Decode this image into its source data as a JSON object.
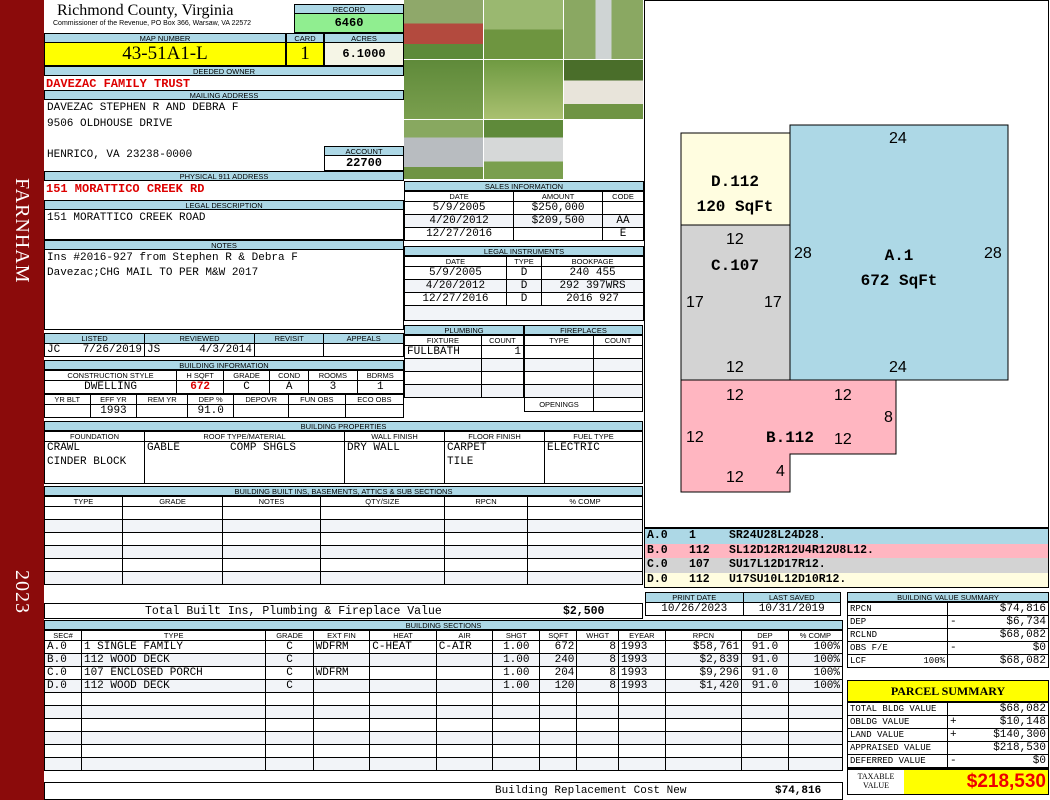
{
  "side": {
    "town": "FARNHAM",
    "year": "2023"
  },
  "header": {
    "county": "Richmond County, Virginia",
    "subtitle": "Commissioner of the Revenue, PO Box 366, Warsaw, VA 22572",
    "record_label": "RECORD",
    "record": "6460"
  },
  "map": {
    "map_label": "MAP NUMBER",
    "map_number": "43-51A1-L",
    "card_label": "CARD",
    "card": "1",
    "acres_label": "ACRES",
    "acres": "6.1000"
  },
  "owner": {
    "label": "DEEDED OWNER",
    "value": "DAVEZAC FAMILY TRUST"
  },
  "mailing": {
    "label": "MAILING ADDRESS",
    "line1": "DAVEZAC STEPHEN R AND DEBRA F",
    "line2": "9506 OLDHOUSE DRIVE",
    "line3": "HENRICO, VA 23238-0000",
    "account_label": "ACCOUNT",
    "account": "22700"
  },
  "physical": {
    "label": "PHYSICAL 911 ADDRESS",
    "value": "151 MORATTICO CREEK RD"
  },
  "legal": {
    "label": "LEGAL DESCRIPTION",
    "value": "151 MORATTICO CREEK ROAD"
  },
  "notes": {
    "label": "NOTES",
    "line1": "Ins #2016-927 from Stephen R & Debra F",
    "line2": "Davezac;CHG MAIL TO PER M&W 2017"
  },
  "sales": {
    "label": "SALES INFORMATION",
    "cols": [
      "DATE",
      "AMOUNT",
      "CODE"
    ],
    "rows": [
      [
        "5/9/2005",
        "$250,000",
        ""
      ],
      [
        "4/20/2012",
        "$209,500",
        "AA"
      ],
      [
        "12/27/2016",
        "",
        "E"
      ]
    ]
  },
  "instruments": {
    "label": "LEGAL INSTRUMENTS",
    "cols": [
      "DATE",
      "TYPE",
      "BOOKPAGE"
    ],
    "rows": [
      [
        "5/9/2005",
        "D",
        "240 455"
      ],
      [
        "4/20/2012",
        "D",
        "292 397WRS"
      ],
      [
        "12/27/2016",
        "D",
        "2016 927"
      ]
    ]
  },
  "review": {
    "cols": [
      "LISTED",
      "REVIEWED",
      "REVISIT",
      "APPEALS"
    ],
    "listed_by": "JC",
    "listed": "7/26/2019",
    "reviewed_by": "JS",
    "reviewed": "4/3/2014"
  },
  "building_info": {
    "label": "BUILDING INFORMATION",
    "cols1": [
      "CONSTRUCTION STYLE",
      "H SQFT",
      "GRADE",
      "COND",
      "ROOMS",
      "BDRMS"
    ],
    "vals1": [
      "DWELLING",
      "672",
      "C",
      "A",
      "3",
      "1"
    ],
    "cols2": [
      "YR BLT",
      "EFF YR",
      "REM YR",
      "DEP %",
      "DEPOVR",
      "FUN OBS",
      "ECO OBS"
    ],
    "vals2": [
      "",
      "1993",
      "",
      "91.0",
      "",
      "",
      ""
    ]
  },
  "plumbing": {
    "label": "PLUMBING",
    "cols": [
      "FIXTURE",
      "COUNT"
    ],
    "fixture": "FULLBATH",
    "count": "1"
  },
  "fireplaces": {
    "label": "FIREPLACES",
    "cols": [
      "TYPE",
      "COUNT"
    ],
    "openings": "OPENINGS"
  },
  "properties": {
    "label": "BUILDING PROPERTIES",
    "cols": [
      "FOUNDATION",
      "ROOF TYPE/MATERIAL",
      "WALL FINISH",
      "FLOOR FINISH",
      "FUEL TYPE"
    ],
    "foundation1": "CRAWL",
    "foundation2": "CINDER BLOCK",
    "roof_type": "GABLE",
    "roof_material": "COMP SHGLS",
    "wall": "DRY WALL",
    "floor1": "CARPET",
    "floor2": "TILE",
    "fuel": "ELECTRIC"
  },
  "builtins": {
    "label": "BUILDING BUILT INS, BASEMENTS, ATTICS & SUB SECTIONS",
    "cols": [
      "TYPE",
      "GRADE",
      "NOTES",
      "QTY/SIZE",
      "RPCN",
      "% COMP"
    ],
    "total_label": "Total Built Ins, Plumbing & Fireplace Value",
    "total": "$2,500"
  },
  "dates": {
    "print_label": "PRINT DATE",
    "print": "10/26/2023",
    "saved_label": "LAST SAVED",
    "saved": "10/31/2019"
  },
  "sections": {
    "label": "BUILDING SECTIONS",
    "cols": [
      "SEC#",
      "TYPE",
      "GRADE",
      "EXT FIN",
      "HEAT",
      "AIR",
      "SHGT",
      "SQFT",
      "WHGT",
      "EYEAR",
      "RPCN",
      "DEP",
      "% COMP"
    ],
    "rows": [
      [
        "A.0",
        "1 SINGLE FAMILY",
        "C",
        "WDFRM",
        "C-HEAT",
        "C-AIR",
        "1.00",
        "672",
        "8",
        "1993",
        "$58,761",
        "91.0",
        "100%"
      ],
      [
        "B.0",
        "112 WOOD DECK",
        "C",
        "",
        "",
        "",
        "1.00",
        "240",
        "8",
        "1993",
        "$2,839",
        "91.0",
        "100%"
      ],
      [
        "C.0",
        "107 ENCLOSED PORCH",
        "C",
        "WDFRM",
        "",
        "",
        "1.00",
        "204",
        "8",
        "1993",
        "$9,296",
        "91.0",
        "100%"
      ],
      [
        "D.0",
        "112 WOOD DECK",
        "C",
        "",
        "",
        "",
        "1.00",
        "120",
        "8",
        "1993",
        "$1,420",
        "91.0",
        "100%"
      ]
    ],
    "total_label": "Building Replacement Cost New",
    "total": "$74,816"
  },
  "sketch": {
    "labels": {
      "a_name": "A.1",
      "a_area": "672 SqFt",
      "b_name": "B.112",
      "c_name": "C.107",
      "d_name": "D.112",
      "d_area": "120 SqFt"
    },
    "legend": [
      {
        "sec": "A.0",
        "code": "1",
        "path": "SR24U28L24D28.",
        "color": "#add8e6"
      },
      {
        "sec": "B.0",
        "code": "112",
        "path": "SL12D12R12U4R12U8L12.",
        "color": "#ffb6c1"
      },
      {
        "sec": "C.0",
        "code": "107",
        "path": "SU17L12D17R12.",
        "color": "#d3d3d3"
      },
      {
        "sec": "D.0",
        "code": "112",
        "path": "U17SU10L12D10R12.",
        "color": "#fffde0"
      }
    ]
  },
  "value_summary": {
    "label": "BUILDING VALUE SUMMARY",
    "rows": [
      [
        "RPCN",
        "",
        "",
        "$74,816"
      ],
      [
        "DEP",
        "",
        "-",
        "$6,734"
      ],
      [
        "RCLND",
        "",
        "",
        "$68,082"
      ],
      [
        "OBS F/E",
        "",
        "-",
        "$0"
      ],
      [
        "LCF",
        "100%",
        "",
        "$68,082"
      ]
    ]
  },
  "parcel": {
    "label": "PARCEL SUMMARY",
    "rows": [
      [
        "TOTAL BLDG VALUE",
        "",
        "$68,082"
      ],
      [
        "OBLDG VALUE",
        "+",
        "$10,148"
      ],
      [
        "LAND VALUE",
        "+",
        "$140,300"
      ],
      [
        "APPRAISED VALUE",
        "",
        "$218,530"
      ],
      [
        "DEFERRED VALUE",
        "-",
        "$0"
      ]
    ],
    "taxable_label": "TAXABLE VALUE",
    "taxable": "$218,530"
  }
}
